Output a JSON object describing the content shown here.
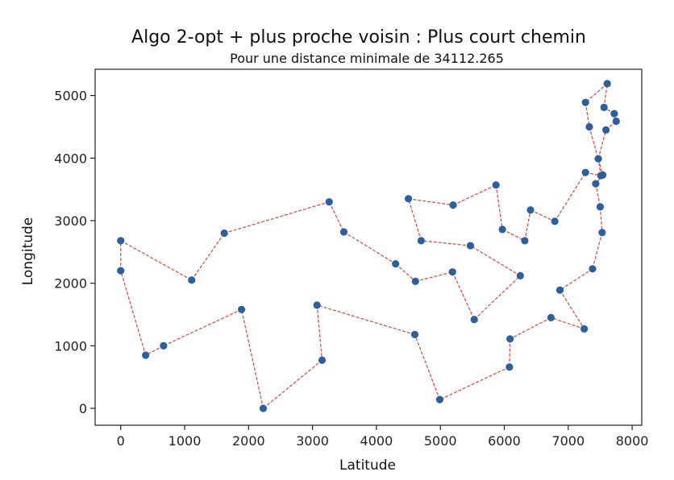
{
  "chart_data": {
    "type": "line",
    "title": "Algo 2-opt + plus proche voisin : Plus court chemin",
    "subtitle": "Pour une distance minimale de 34112.265",
    "xlabel": "Latitude",
    "ylabel": "Longitude",
    "xlim": [
      -400,
      8150
    ],
    "ylim": [
      -270,
      5420
    ],
    "xticks": [
      0,
      1000,
      2000,
      3000,
      4000,
      5000,
      6000,
      7000,
      8000
    ],
    "yticks": [
      0,
      1000,
      2000,
      3000,
      4000,
      5000
    ],
    "xtick_labels": [
      "0",
      "1000",
      "2000",
      "3000",
      "4000",
      "5000",
      "6000",
      "7000",
      "8000"
    ],
    "ytick_labels": [
      "0",
      "1000",
      "2000",
      "3000",
      "4000",
      "5000"
    ],
    "grid": false,
    "colors": {
      "point": "#2d5f9a",
      "path": "#d9534f"
    },
    "route": [
      [
        0,
        2200
      ],
      [
        0,
        2680
      ],
      [
        1110,
        2050
      ],
      [
        1620,
        2800
      ],
      [
        3260,
        3300
      ],
      [
        3490,
        2820
      ],
      [
        4300,
        2310
      ],
      [
        4610,
        2030
      ],
      [
        5190,
        2180
      ],
      [
        5530,
        1420
      ],
      [
        6250,
        2120
      ],
      [
        5470,
        2600
      ],
      [
        4700,
        2680
      ],
      [
        4500,
        3350
      ],
      [
        5200,
        3250
      ],
      [
        5870,
        3570
      ],
      [
        5970,
        2860
      ],
      [
        6320,
        2680
      ],
      [
        6410,
        3170
      ],
      [
        6790,
        2990
      ],
      [
        7270,
        3770
      ],
      [
        7510,
        3720
      ],
      [
        7470,
        3990
      ],
      [
        7590,
        4450
      ],
      [
        7750,
        4590
      ],
      [
        7720,
        4710
      ],
      [
        7560,
        4810
      ],
      [
        7610,
        5190
      ],
      [
        7270,
        4890
      ],
      [
        7330,
        4500
      ],
      [
        7540,
        3730
      ],
      [
        7430,
        3590
      ],
      [
        7500,
        3220
      ],
      [
        7530,
        2810
      ],
      [
        7380,
        2230
      ],
      [
        6870,
        1890
      ],
      [
        7250,
        1270
      ],
      [
        6730,
        1450
      ],
      [
        6090,
        1110
      ],
      [
        6080,
        660
      ],
      [
        4990,
        140
      ],
      [
        4600,
        1180
      ],
      [
        3070,
        1650
      ],
      [
        3150,
        770
      ],
      [
        2230,
        0
      ],
      [
        1890,
        1580
      ],
      [
        670,
        1000
      ],
      [
        390,
        850
      ],
      [
        0,
        2200
      ]
    ]
  }
}
